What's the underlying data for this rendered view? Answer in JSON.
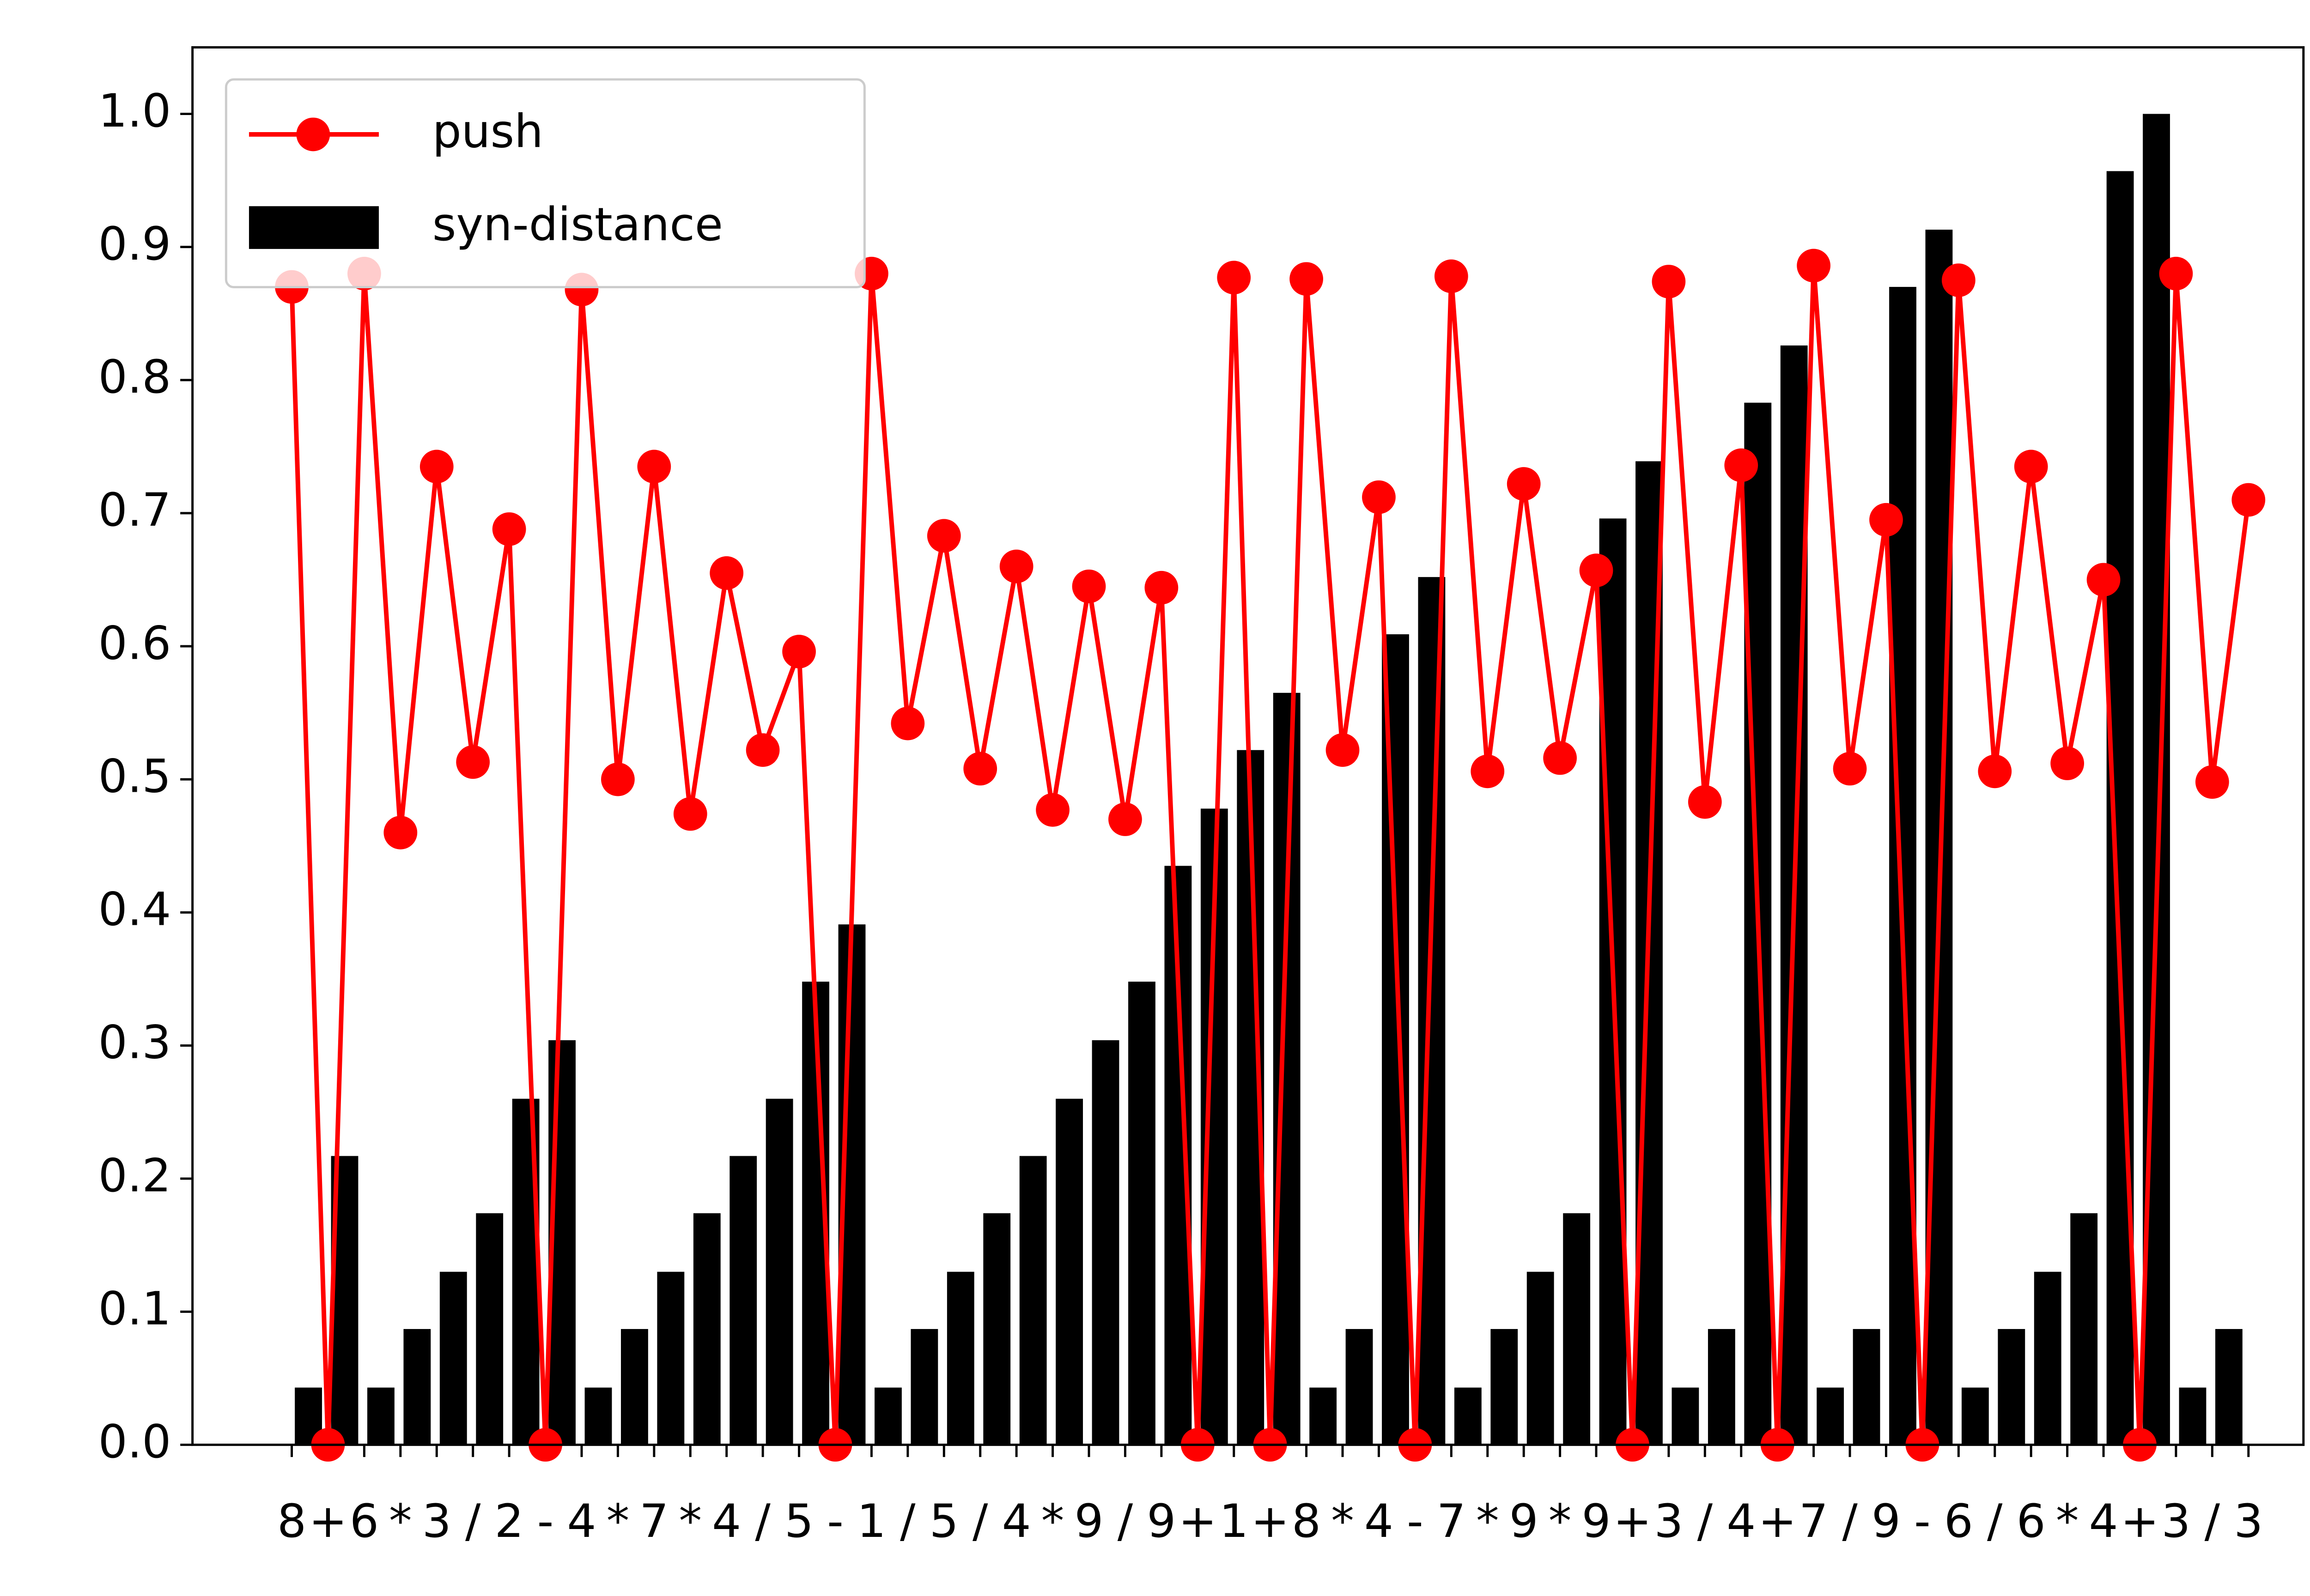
{
  "chart_data": {
    "type": "bar_line",
    "categories": [
      "8",
      "+",
      "6",
      "*",
      "3",
      "/",
      "2",
      "-",
      "4",
      "*",
      "7",
      "*",
      "4",
      "/",
      "5",
      "-",
      "1",
      "/",
      "5",
      "/",
      "4",
      "*",
      "9",
      "/",
      "9",
      "+",
      "1",
      "+",
      "8",
      "*",
      "4",
      "-",
      "7",
      "*",
      "9",
      "*",
      "9",
      "+",
      "3",
      "/",
      "4",
      "+",
      "7",
      "/",
      "9",
      "-",
      "6",
      "/",
      "6",
      "*",
      "4",
      "+",
      "3",
      "/",
      "3"
    ],
    "series": [
      {
        "name": "push",
        "type": "line",
        "color": "#ff0000",
        "values": [
          0.87,
          0,
          0.88,
          0.46,
          0.735,
          0.513,
          0.688,
          0,
          0.868,
          0.5,
          0.735,
          0.474,
          0.655,
          0.522,
          0.596,
          0,
          0.88,
          0.542,
          0.683,
          0.508,
          0.66,
          0.477,
          0.645,
          0.47,
          0.644,
          0,
          0.877,
          0,
          0.876,
          0.522,
          0.712,
          0,
          0.878,
          0.506,
          0.722,
          0.516,
          0.657,
          0,
          0.874,
          0.483,
          0.736,
          0,
          0.886,
          0.508,
          0.695,
          0,
          0.875,
          0.506,
          0.735,
          0.512,
          0.65,
          0,
          0.88,
          0.498,
          0.71
        ]
      },
      {
        "name": "syn-distance",
        "type": "bar",
        "color": "#000000",
        "values": [
          0.043,
          0.217,
          0.043,
          0.087,
          0.13,
          0.174,
          0.26,
          0.304,
          0.043,
          0.087,
          0.13,
          0.174,
          0.217,
          0.26,
          0.348,
          0.391,
          0.043,
          0.087,
          0.13,
          0.174,
          0.217,
          0.26,
          0.304,
          0.348,
          0.435,
          0.478,
          0.522,
          0.565,
          0.043,
          0.087,
          0.609,
          0.652,
          0.043,
          0.087,
          0.13,
          0.174,
          0.696,
          0.739,
          0.043,
          0.087,
          0.783,
          0.826,
          0.043,
          0.087,
          0.87,
          0.913,
          0.043,
          0.087,
          0.13,
          0.174,
          0.957,
          1.0,
          0.043,
          0.087,
          null
        ]
      }
    ],
    "ylim": [
      0,
      1.05
    ],
    "yticks": [
      {
        "value": 0,
        "label": "0.0"
      },
      0.1,
      0.2,
      0.3,
      0.4,
      0.5,
      0.6,
      0.7,
      0.8,
      0.9,
      {
        "value": 1,
        "label": "1.0"
      }
    ],
    "legend": "upper left"
  }
}
